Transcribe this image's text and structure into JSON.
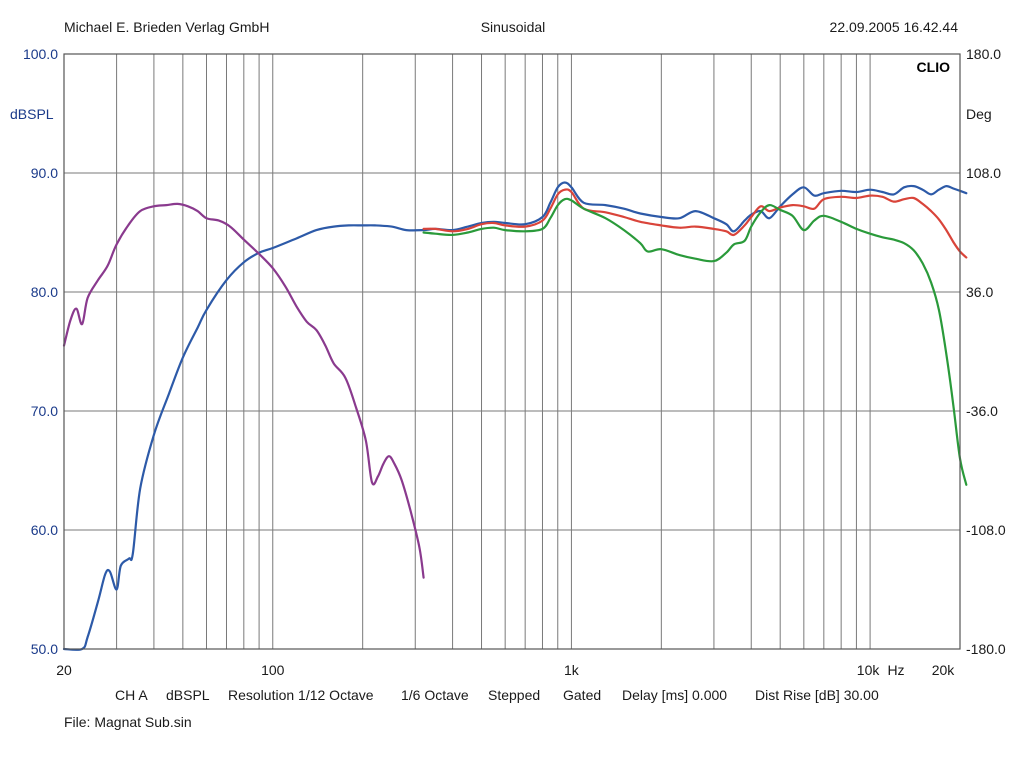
{
  "header": {
    "publisher": "Michael E. Brieden Verlag GmbH",
    "mode": "Sinusoidal",
    "datetime": "22.09.2005 16.42.44",
    "brand": "CLIO"
  },
  "footer": {
    "settings": [
      "CH A",
      "dBSPL",
      "Resolution 1/12 Octave",
      "1/6 Octave",
      "Stepped",
      "Gated",
      "Delay [ms] 0.000",
      "Dist Rise [dB] 30.00"
    ],
    "file": "File: Magnat Sub.sin"
  },
  "chart_data": {
    "type": "line",
    "x_scale": "log",
    "xlim": [
      20,
      20000
    ],
    "ylim": [
      50,
      100
    ],
    "y2lim": [
      -180,
      180
    ],
    "ylabel": "dBSPL",
    "y2label": "Deg",
    "xunit": "Hz",
    "grid": true,
    "x_tick_labels": [
      {
        "v": 20,
        "t": "20"
      },
      {
        "v": 100,
        "t": "100"
      },
      {
        "v": 1000,
        "t": "1k"
      },
      {
        "v": 10000,
        "t": "10k"
      },
      {
        "v": 20000,
        "t": "20k"
      }
    ],
    "y_ticks": [
      {
        "v": 100,
        "t": "100.0"
      },
      {
        "v": 90,
        "t": "90.0"
      },
      {
        "v": 80,
        "t": "80.0"
      },
      {
        "v": 70,
        "t": "70.0"
      },
      {
        "v": 60,
        "t": "60.0"
      },
      {
        "v": 50,
        "t": "50.0"
      }
    ],
    "y2_ticks": [
      {
        "v": 180,
        "t": "180.0"
      },
      {
        "v": 108,
        "t": "108.0"
      },
      {
        "v": 36,
        "t": "36.0"
      },
      {
        "v": -36,
        "t": "-36.0"
      },
      {
        "v": -108,
        "t": "-108.0"
      },
      {
        "v": -180,
        "t": "-180.0"
      }
    ],
    "series": [
      {
        "color": "#2d5aa8",
        "points": [
          [
            20,
            50
          ],
          [
            23,
            50
          ],
          [
            24,
            51
          ],
          [
            26,
            54
          ],
          [
            27.5,
            56.3
          ],
          [
            28.5,
            56.5
          ],
          [
            30,
            55
          ],
          [
            31,
            57
          ],
          [
            33,
            57.6
          ],
          [
            34,
            58
          ],
          [
            36,
            63.5
          ],
          [
            40,
            68
          ],
          [
            45,
            71.5
          ],
          [
            50,
            74.5
          ],
          [
            56,
            77
          ],
          [
            60,
            78.5
          ],
          [
            70,
            81
          ],
          [
            80,
            82.5
          ],
          [
            90,
            83.3
          ],
          [
            100,
            83.7
          ],
          [
            120,
            84.5
          ],
          [
            140,
            85.2
          ],
          [
            160,
            85.5
          ],
          [
            180,
            85.6
          ],
          [
            200,
            85.6
          ],
          [
            220,
            85.6
          ],
          [
            250,
            85.5
          ],
          [
            280,
            85.2
          ],
          [
            320,
            85.2
          ],
          [
            350,
            85.3
          ],
          [
            400,
            85.2
          ],
          [
            450,
            85.5
          ],
          [
            500,
            85.8
          ],
          [
            550,
            85.9
          ],
          [
            600,
            85.8
          ],
          [
            700,
            85.7
          ],
          [
            800,
            86.3
          ],
          [
            850,
            87.5
          ],
          [
            900,
            88.8
          ],
          [
            950,
            89.2
          ],
          [
            1000,
            88.8
          ],
          [
            1100,
            87.5
          ],
          [
            1300,
            87.3
          ],
          [
            1500,
            87
          ],
          [
            1700,
            86.6
          ],
          [
            2000,
            86.3
          ],
          [
            2300,
            86.2
          ],
          [
            2600,
            86.8
          ],
          [
            3000,
            86.2
          ],
          [
            3300,
            85.7
          ],
          [
            3500,
            85.1
          ],
          [
            3800,
            86
          ],
          [
            4000,
            86.5
          ],
          [
            4300,
            86.8
          ],
          [
            4600,
            86.2
          ],
          [
            5000,
            87.2
          ],
          [
            5500,
            88.2
          ],
          [
            6000,
            88.8
          ],
          [
            6500,
            88.1
          ],
          [
            7000,
            88.3
          ],
          [
            8000,
            88.5
          ],
          [
            9000,
            88.4
          ],
          [
            10000,
            88.6
          ],
          [
            11000,
            88.4
          ],
          [
            12000,
            88.2
          ],
          [
            13000,
            88.8
          ],
          [
            14000,
            88.9
          ],
          [
            15000,
            88.6
          ],
          [
            16000,
            88.2
          ],
          [
            17000,
            88.6
          ],
          [
            18000,
            88.9
          ],
          [
            19000,
            88.7
          ],
          [
            20000,
            88.5
          ],
          [
            21000,
            88.3
          ]
        ]
      },
      {
        "color": "#d9443a",
        "points": [
          [
            320,
            85.3
          ],
          [
            350,
            85.3
          ],
          [
            400,
            85.1
          ],
          [
            450,
            85.3
          ],
          [
            500,
            85.7
          ],
          [
            550,
            85.8
          ],
          [
            600,
            85.6
          ],
          [
            700,
            85.5
          ],
          [
            800,
            86
          ],
          [
            850,
            87
          ],
          [
            900,
            88.2
          ],
          [
            950,
            88.6
          ],
          [
            1000,
            88.4
          ],
          [
            1100,
            87
          ],
          [
            1300,
            86.7
          ],
          [
            1500,
            86.3
          ],
          [
            1700,
            85.9
          ],
          [
            2000,
            85.6
          ],
          [
            2300,
            85.4
          ],
          [
            2600,
            85.5
          ],
          [
            3000,
            85.3
          ],
          [
            3300,
            85.1
          ],
          [
            3500,
            84.8
          ],
          [
            3800,
            85.6
          ],
          [
            4000,
            86.3
          ],
          [
            4300,
            87.2
          ],
          [
            4600,
            86.8
          ],
          [
            5000,
            87.1
          ],
          [
            5500,
            87.3
          ],
          [
            6000,
            87.2
          ],
          [
            6500,
            87
          ],
          [
            7000,
            87.8
          ],
          [
            8000,
            88
          ],
          [
            9000,
            87.9
          ],
          [
            10000,
            88.1
          ],
          [
            11000,
            88
          ],
          [
            12000,
            87.6
          ],
          [
            13000,
            87.8
          ],
          [
            14000,
            87.9
          ],
          [
            15000,
            87.4
          ],
          [
            16000,
            86.8
          ],
          [
            17000,
            86.1
          ],
          [
            18000,
            85.2
          ],
          [
            19000,
            84.2
          ],
          [
            20000,
            83.4
          ],
          [
            21000,
            82.9
          ]
        ]
      },
      {
        "color": "#2a9a3a",
        "points": [
          [
            320,
            85
          ],
          [
            350,
            84.9
          ],
          [
            400,
            84.8
          ],
          [
            450,
            85
          ],
          [
            500,
            85.3
          ],
          [
            550,
            85.4
          ],
          [
            600,
            85.2
          ],
          [
            700,
            85.1
          ],
          [
            800,
            85.3
          ],
          [
            850,
            86.2
          ],
          [
            900,
            87.3
          ],
          [
            950,
            87.8
          ],
          [
            1000,
            87.7
          ],
          [
            1100,
            87
          ],
          [
            1300,
            86.2
          ],
          [
            1500,
            85.2
          ],
          [
            1700,
            84.1
          ],
          [
            1800,
            83.4
          ],
          [
            2000,
            83.6
          ],
          [
            2300,
            83.1
          ],
          [
            2600,
            82.8
          ],
          [
            3000,
            82.6
          ],
          [
            3300,
            83.3
          ],
          [
            3500,
            84
          ],
          [
            3800,
            84.3
          ],
          [
            4000,
            85.5
          ],
          [
            4300,
            86.7
          ],
          [
            4600,
            87.3
          ],
          [
            5000,
            86.9
          ],
          [
            5500,
            86.4
          ],
          [
            6000,
            85.2
          ],
          [
            6500,
            86
          ],
          [
            7000,
            86.4
          ],
          [
            8000,
            85.9
          ],
          [
            9000,
            85.3
          ],
          [
            10000,
            84.9
          ],
          [
            11000,
            84.6
          ],
          [
            12000,
            84.4
          ],
          [
            13000,
            84.1
          ],
          [
            14000,
            83.5
          ],
          [
            15000,
            82.4
          ],
          [
            16000,
            80.8
          ],
          [
            17000,
            78.5
          ],
          [
            18000,
            74.8
          ],
          [
            19000,
            70.5
          ],
          [
            20000,
            66
          ],
          [
            21000,
            63.8
          ]
        ]
      },
      {
        "color": "#8a3a8e",
        "points": [
          [
            20,
            75.5
          ],
          [
            21,
            77.6
          ],
          [
            22,
            78.6
          ],
          [
            23,
            77.3
          ],
          [
            24,
            79.5
          ],
          [
            26,
            81
          ],
          [
            28,
            82.2
          ],
          [
            30,
            84
          ],
          [
            33,
            85.7
          ],
          [
            36,
            86.8
          ],
          [
            40,
            87.2
          ],
          [
            44,
            87.3
          ],
          [
            48,
            87.4
          ],
          [
            52,
            87.2
          ],
          [
            56,
            86.8
          ],
          [
            60,
            86.2
          ],
          [
            66,
            86
          ],
          [
            72,
            85.5
          ],
          [
            80,
            84.4
          ],
          [
            90,
            83.2
          ],
          [
            100,
            82
          ],
          [
            110,
            80.5
          ],
          [
            120,
            78.8
          ],
          [
            130,
            77.5
          ],
          [
            140,
            76.8
          ],
          [
            150,
            75.5
          ],
          [
            160,
            74
          ],
          [
            175,
            72.8
          ],
          [
            190,
            70.3
          ],
          [
            205,
            67.5
          ],
          [
            215,
            64
          ],
          [
            225,
            64.5
          ],
          [
            235,
            65.6
          ],
          [
            245,
            66.2
          ],
          [
            255,
            65.6
          ],
          [
            270,
            64.2
          ],
          [
            290,
            61.5
          ],
          [
            310,
            58.5
          ],
          [
            320,
            56
          ]
        ]
      }
    ]
  }
}
